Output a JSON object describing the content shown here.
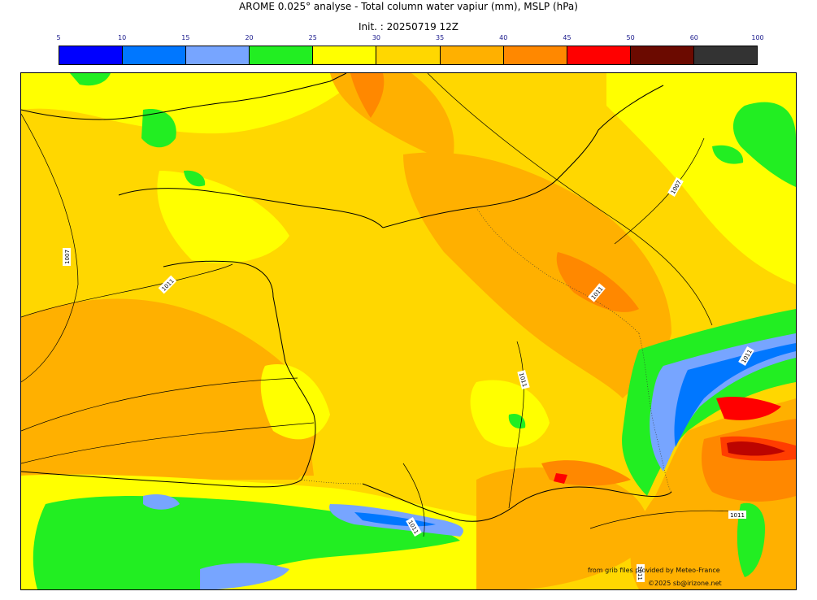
{
  "title": "AROME 0.025° analyse - Total column water vapiur (mm), MSLP (hPa)",
  "subtitle": "Init. : 20250719 12Z",
  "legend": {
    "ticks": [
      "5",
      "10",
      "15",
      "20",
      "25",
      "30",
      "35",
      "40",
      "45",
      "50",
      "60",
      "100"
    ],
    "colors": [
      "#0000ff",
      "#0077ff",
      "#77a5ff",
      "#22ee22",
      "#ffff00",
      "#ffd700",
      "#ffb000",
      "#ff8800",
      "#ff0000",
      "#6b0a00",
      "#333333"
    ]
  },
  "isobars": {
    "labels": [
      "1007",
      "1007",
      "1011",
      "1011",
      "1011",
      "1011",
      "1011",
      "1011",
      "1011"
    ]
  },
  "credits": {
    "line1": "from grib files provided by Meteo-France",
    "line2": "©2025 sb@irizone.net"
  }
}
